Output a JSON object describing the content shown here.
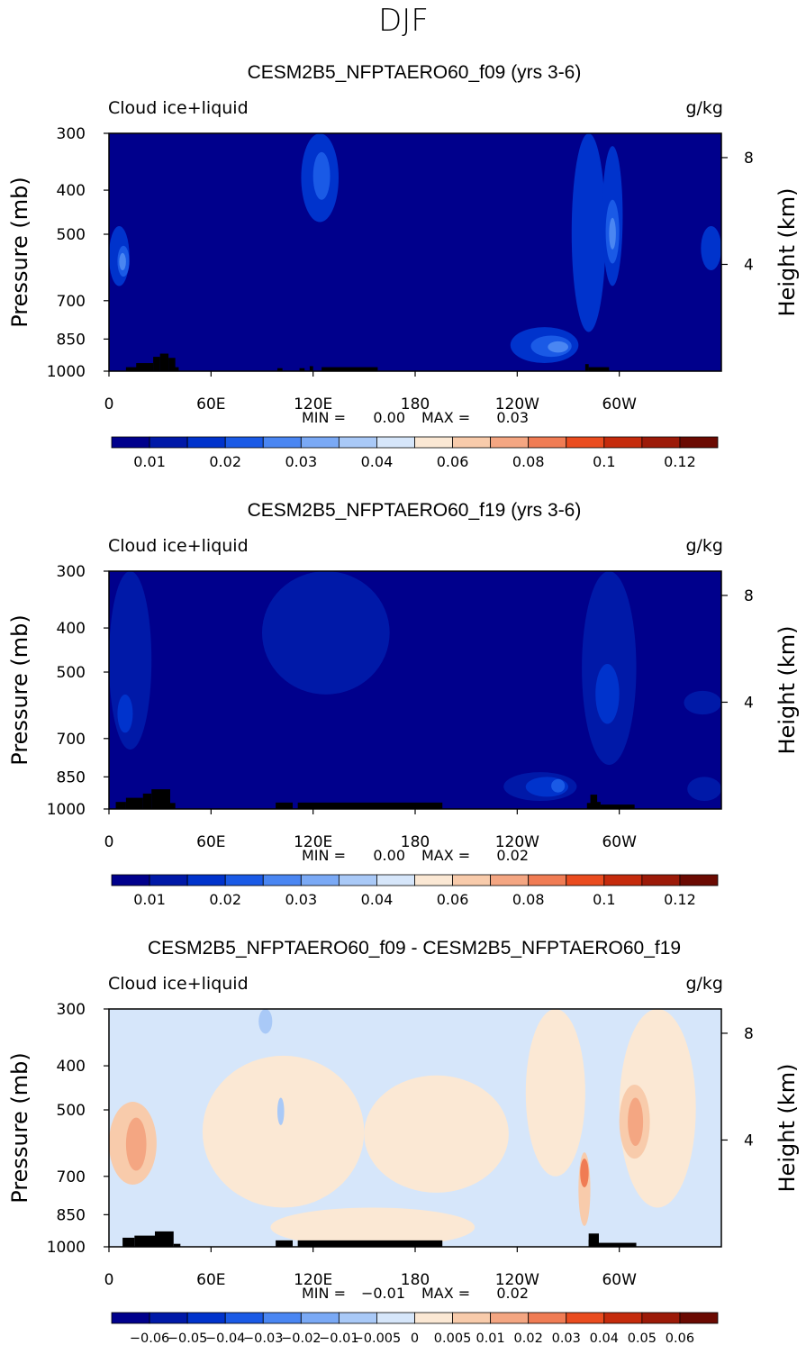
{
  "figure_title": "DJF",
  "chart_data": [
    {
      "type": "heatmap",
      "title": "CESM2B5_NFPTAERO60_f09 (yrs 3-6)",
      "variable": "Cloud ice+liquid",
      "units": "g/kg",
      "ylabel": "Pressure (mb)",
      "ylabel_right": "Height (km)",
      "y_ticks": [
        "300",
        "400",
        "500",
        "700",
        "850",
        "1000"
      ],
      "y_tick_values": [
        300,
        400,
        500,
        700,
        850,
        1000
      ],
      "y_right_ticks": [
        "8",
        "4"
      ],
      "y_right_tick_values": [
        8,
        4
      ],
      "x_ticks": [
        "0",
        "60E",
        "120E",
        "180",
        "120W",
        "60W"
      ],
      "x_tick_values": [
        0,
        60,
        120,
        180,
        240,
        300
      ],
      "xlim": [
        0,
        360
      ],
      "ylim": [
        300,
        1000
      ],
      "min_label": "MIN =",
      "min_value": "0.00",
      "max_label": "MAX =",
      "max_value": "0.03",
      "colorbar": {
        "levels": [
          "0.01",
          "0.02",
          "0.03",
          "0.04",
          "0.06",
          "0.08",
          "0.1",
          "0.12"
        ],
        "colors": [
          "#00008c",
          "#0019a8",
          "#0033cc",
          "#1a5ae6",
          "#4a86f2",
          "#7aa9f5",
          "#a9c9f7",
          "#d6e6fa",
          "#fbe8d4",
          "#f8cbab",
          "#f4a682",
          "#f07c54",
          "#ea4c1f",
          "#c52b0c",
          "#9c1a08",
          "#6b0a02"
        ]
      },
      "features": [
        {
          "lon0": 0,
          "lon1": 12,
          "p0": 480,
          "p1": 650,
          "level": 2
        },
        {
          "lon0": 5,
          "lon1": 12,
          "p0": 530,
          "p1": 620,
          "level": 3
        },
        {
          "lon0": 6,
          "lon1": 10,
          "p0": 550,
          "p1": 600,
          "level": 4
        },
        {
          "lon0": 113,
          "lon1": 135,
          "p0": 300,
          "p1": 470,
          "level": 2
        },
        {
          "lon0": 120,
          "lon1": 130,
          "p0": 330,
          "p1": 420,
          "level": 3
        },
        {
          "lon0": 236,
          "lon1": 276,
          "p0": 800,
          "p1": 960,
          "level": 2
        },
        {
          "lon0": 248,
          "lon1": 272,
          "p0": 835,
          "p1": 930,
          "level": 3
        },
        {
          "lon0": 258,
          "lon1": 270,
          "p0": 860,
          "p1": 910,
          "level": 4
        },
        {
          "lon0": 272,
          "lon1": 292,
          "p0": 300,
          "p1": 820,
          "level": 2
        },
        {
          "lon0": 290,
          "lon1": 302,
          "p0": 320,
          "p1": 650,
          "level": 2
        },
        {
          "lon0": 292,
          "lon1": 300,
          "p0": 420,
          "p1": 580,
          "level": 3
        },
        {
          "lon0": 294,
          "lon1": 298,
          "p0": 460,
          "p1": 540,
          "level": 4
        },
        {
          "lon0": 348,
          "lon1": 360,
          "p0": 480,
          "p1": 600,
          "level": 2
        }
      ]
    },
    {
      "type": "heatmap",
      "title": "CESM2B5_NFPTAERO60_f19 (yrs 3-6)",
      "variable": "Cloud ice+liquid",
      "units": "g/kg",
      "ylabel": "Pressure (mb)",
      "ylabel_right": "Height (km)",
      "y_ticks": [
        "300",
        "400",
        "500",
        "700",
        "850",
        "1000"
      ],
      "y_tick_values": [
        300,
        400,
        500,
        700,
        850,
        1000
      ],
      "y_right_ticks": [
        "8",
        "4"
      ],
      "y_right_tick_values": [
        8,
        4
      ],
      "x_ticks": [
        "0",
        "60E",
        "120E",
        "180",
        "120W",
        "60W"
      ],
      "x_tick_values": [
        0,
        60,
        120,
        180,
        240,
        300
      ],
      "xlim": [
        0,
        360
      ],
      "ylim": [
        300,
        1000
      ],
      "min_label": "MIN =",
      "min_value": "0.00",
      "max_label": "MAX =",
      "max_value": "0.02",
      "colorbar": {
        "levels": [
          "0.01",
          "0.02",
          "0.03",
          "0.04",
          "0.06",
          "0.08",
          "0.1",
          "0.12"
        ],
        "colors": [
          "#00008c",
          "#0019a8",
          "#0033cc",
          "#1a5ae6",
          "#4a86f2",
          "#7aa9f5",
          "#a9c9f7",
          "#d6e6fa",
          "#fbe8d4",
          "#f8cbab",
          "#f4a682",
          "#f07c54",
          "#ea4c1f",
          "#c52b0c",
          "#9c1a08",
          "#6b0a02"
        ]
      },
      "features": [
        {
          "lon0": 0,
          "lon1": 25,
          "p0": 300,
          "p1": 740,
          "level": 1
        },
        {
          "lon0": 5,
          "lon1": 14,
          "p0": 560,
          "p1": 680,
          "level": 2
        },
        {
          "lon0": 90,
          "lon1": 165,
          "p0": 300,
          "p1": 560,
          "level": 1
        },
        {
          "lon0": 232,
          "lon1": 275,
          "p0": 830,
          "p1": 960,
          "level": 1
        },
        {
          "lon0": 245,
          "lon1": 270,
          "p0": 850,
          "p1": 940,
          "level": 2
        },
        {
          "lon0": 260,
          "lon1": 268,
          "p0": 860,
          "p1": 920,
          "level": 3
        },
        {
          "lon0": 278,
          "lon1": 310,
          "p0": 300,
          "p1": 800,
          "level": 1
        },
        {
          "lon0": 286,
          "lon1": 300,
          "p0": 480,
          "p1": 650,
          "level": 2
        },
        {
          "lon0": 338,
          "lon1": 360,
          "p0": 550,
          "p1": 620,
          "level": 1
        },
        {
          "lon0": 340,
          "lon1": 360,
          "p0": 850,
          "p1": 960,
          "level": 1
        }
      ]
    },
    {
      "type": "heatmap",
      "title": "CESM2B5_NFPTAERO60_f09 - CESM2B5_NFPTAERO60_f19",
      "variable": "Cloud ice+liquid",
      "units": "g/kg",
      "ylabel": "Pressure (mb)",
      "ylabel_right": "Height (km)",
      "y_ticks": [
        "300",
        "400",
        "500",
        "700",
        "850",
        "1000"
      ],
      "y_tick_values": [
        300,
        400,
        500,
        700,
        850,
        1000
      ],
      "y_right_ticks": [
        "8",
        "4"
      ],
      "y_right_tick_values": [
        8,
        4
      ],
      "x_ticks": [
        "0",
        "60E",
        "120E",
        "180",
        "120W",
        "60W"
      ],
      "x_tick_values": [
        0,
        60,
        120,
        180,
        240,
        300
      ],
      "xlim": [
        0,
        360
      ],
      "ylim": [
        300,
        1000
      ],
      "min_label": "MIN =",
      "min_value": "−0.01",
      "max_label": "MAX =",
      "max_value": "0.02",
      "colorbar": {
        "levels": [
          "−0.06",
          "−0.05",
          "−0.04",
          "−0.03",
          "−0.02",
          "−0.01",
          "−0.005",
          "0",
          "0.005",
          "0.01",
          "0.02",
          "0.03",
          "0.04",
          "0.05",
          "0.06"
        ],
        "colors": [
          "#00008c",
          "#0019a8",
          "#0033cc",
          "#1a5ae6",
          "#4a86f2",
          "#7aa9f5",
          "#a9c9f7",
          "#d6e6fa",
          "#fbe8d4",
          "#f8cbab",
          "#f4a682",
          "#f07c54",
          "#ea4c1f",
          "#c52b0c",
          "#9c1a08",
          "#6b0a02"
        ]
      },
      "features": [
        {
          "lon0": 55,
          "lon1": 150,
          "p0": 380,
          "p1": 820,
          "level": 8
        },
        {
          "lon0": 95,
          "lon1": 215,
          "p0": 820,
          "p1": 1000,
          "level": 8
        },
        {
          "lon0": 150,
          "lon1": 235,
          "p0": 420,
          "p1": 760,
          "level": 8
        },
        {
          "lon0": 245,
          "lon1": 280,
          "p0": 300,
          "p1": 700,
          "level": 8
        },
        {
          "lon0": 300,
          "lon1": 345,
          "p0": 300,
          "p1": 820,
          "level": 8
        },
        {
          "lon0": 0,
          "lon1": 28,
          "p0": 480,
          "p1": 730,
          "level": 9
        },
        {
          "lon0": 10,
          "lon1": 22,
          "p0": 520,
          "p1": 680,
          "level": 10
        },
        {
          "lon0": 300,
          "lon1": 318,
          "p0": 440,
          "p1": 640,
          "level": 9
        },
        {
          "lon0": 305,
          "lon1": 314,
          "p0": 470,
          "p1": 600,
          "level": 10
        },
        {
          "lon0": 276,
          "lon1": 283,
          "p0": 620,
          "p1": 900,
          "level": 9
        },
        {
          "lon0": 277,
          "lon1": 282,
          "p0": 640,
          "p1": 740,
          "level": 11
        },
        {
          "lon0": 99,
          "lon1": 103,
          "p0": 470,
          "p1": 540,
          "level": 6
        },
        {
          "lon0": 88,
          "lon1": 96,
          "p0": 300,
          "p1": 340,
          "level": 6
        }
      ]
    }
  ]
}
